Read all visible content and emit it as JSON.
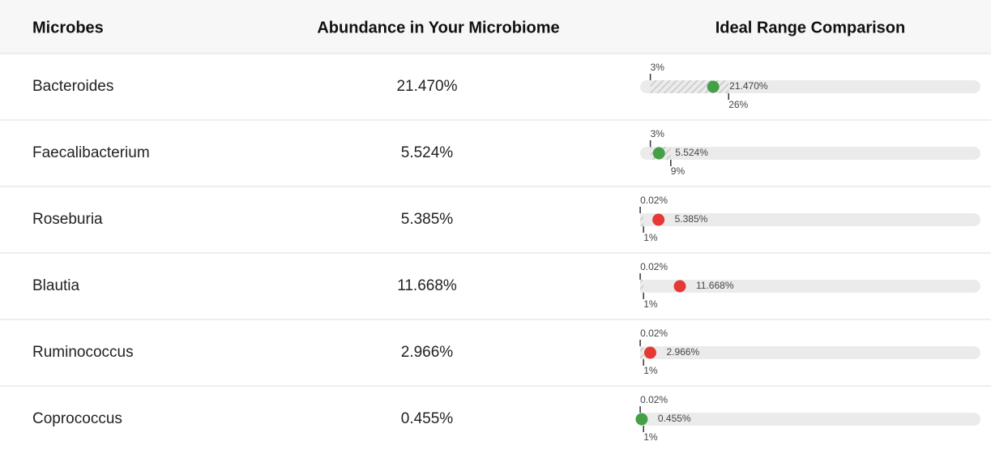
{
  "header": {
    "columns": [
      "Microbes",
      "Abundance in Your Microbiome",
      "Ideal Range Comparison"
    ]
  },
  "xlim": [
    0,
    100
  ],
  "rows": [
    {
      "microbe": "Bacteroides",
      "abundance": {
        "value": 21.47,
        "label": "21.470%"
      },
      "low": {
        "value": 3,
        "label": "3%"
      },
      "high": {
        "value": 26,
        "label": "26%"
      },
      "color": "#43a047"
    },
    {
      "microbe": "Faecalibacterium",
      "abundance": {
        "value": 5.524,
        "label": "5.524%"
      },
      "low": {
        "value": 3,
        "label": "3%"
      },
      "high": {
        "value": 9,
        "label": "9%"
      },
      "color": "#43a047"
    },
    {
      "microbe": "Roseburia",
      "abundance": {
        "value": 5.385,
        "label": "5.385%"
      },
      "low": {
        "value": 0.02,
        "label": "0.02%"
      },
      "high": {
        "value": 1,
        "label": "1%"
      },
      "color": "#e53935"
    },
    {
      "microbe": "Blautia",
      "abundance": {
        "value": 11.668,
        "label": "11.668%"
      },
      "low": {
        "value": 0.02,
        "label": "0.02%"
      },
      "high": {
        "value": 1,
        "label": "1%"
      },
      "color": "#e53935"
    },
    {
      "microbe": "Ruminococcus",
      "abundance": {
        "value": 2.966,
        "label": "2.966%"
      },
      "low": {
        "value": 0.02,
        "label": "0.02%"
      },
      "high": {
        "value": 1,
        "label": "1%"
      },
      "color": "#e53935"
    },
    {
      "microbe": "Coprococcus",
      "abundance": {
        "value": 0.455,
        "label": "0.455%"
      },
      "low": {
        "value": 0.02,
        "label": "0.02%"
      },
      "high": {
        "value": 1,
        "label": "1%"
      },
      "color": "#43a047"
    }
  ]
}
